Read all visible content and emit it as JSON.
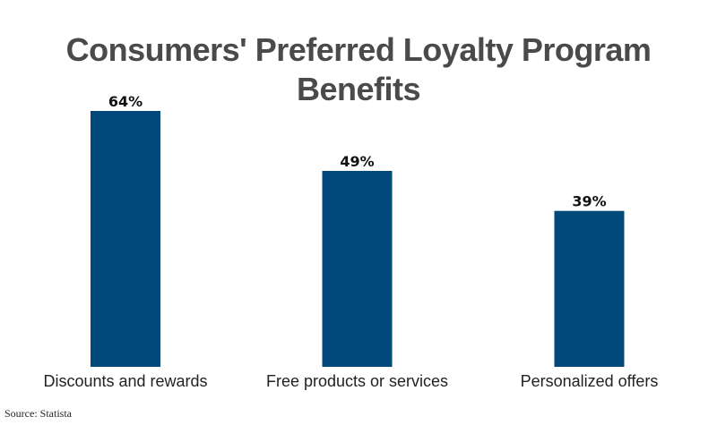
{
  "chart_data": {
    "type": "bar",
    "title": "Consumers' Preferred Loyalty Program Benefits",
    "categories": [
      "Discounts and rewards",
      "Free products or services",
      "Personalized offers"
    ],
    "values": [
      64,
      49,
      39
    ],
    "value_labels": [
      "64%",
      "49%",
      "39%"
    ],
    "unit": "%",
    "xlabel": "",
    "ylabel": "",
    "ylim": [
      0,
      70
    ],
    "grid": false,
    "legend": "none"
  },
  "colors": {
    "bar": "#00497a",
    "title": "#4a4a4a",
    "text": "#222222"
  },
  "source": "Source: Statista"
}
